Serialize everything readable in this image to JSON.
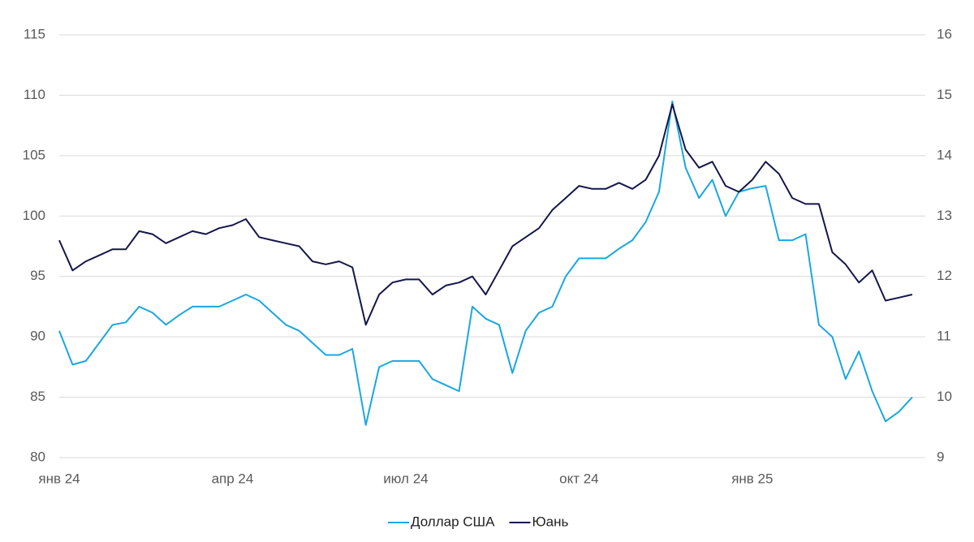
{
  "chart_data": {
    "type": "line",
    "categories": [
      "янв 24",
      null,
      null,
      null,
      null,
      null,
      null,
      null,
      null,
      null,
      null,
      null,
      null,
      "апр 24",
      null,
      null,
      null,
      null,
      null,
      null,
      null,
      null,
      null,
      null,
      null,
      null,
      "июл 24",
      null,
      null,
      null,
      null,
      null,
      null,
      null,
      null,
      null,
      null,
      null,
      null,
      "окт 24",
      null,
      null,
      null,
      null,
      null,
      null,
      null,
      null,
      null,
      null,
      null,
      null,
      "янв 25",
      null,
      null,
      null,
      null,
      null,
      null,
      null,
      null,
      null,
      null,
      null,
      null
    ],
    "series": [
      {
        "name": "Доллар США",
        "color": "#1aa7e0",
        "values": [
          90.5,
          87.7,
          88,
          89.5,
          91,
          91.2,
          92.5,
          92,
          91,
          91.8,
          92.5,
          92.5,
          92.5,
          93,
          93.5,
          93,
          92,
          91,
          90.5,
          89.5,
          88.5,
          88.5,
          89,
          82.7,
          87.5,
          88,
          88,
          88,
          86.5,
          86,
          85.5,
          92.5,
          91.5,
          91,
          87,
          90.5,
          92,
          92.5,
          95,
          96.5,
          96.5,
          96.5,
          97.3,
          98,
          99.5,
          102,
          109.5,
          104,
          101.5,
          103,
          100,
          102,
          102.3,
          102.5,
          98,
          98,
          98.5,
          91,
          90,
          86.5,
          88.8,
          85.5,
          83,
          83.8,
          85
        ]
      },
      {
        "name": "Юань",
        "color": "#14164a",
        "axis": "y2",
        "values": [
          12.6,
          12.1,
          12.25,
          12.35,
          12.45,
          12.45,
          12.75,
          12.7,
          12.55,
          12.65,
          12.75,
          12.7,
          12.8,
          12.85,
          12.95,
          12.65,
          12.6,
          12.55,
          12.5,
          12.25,
          12.2,
          12.25,
          12.15,
          11.2,
          11.7,
          11.9,
          11.95,
          11.95,
          11.7,
          11.85,
          11.9,
          12.0,
          11.7,
          12.1,
          12.5,
          12.65,
          12.8,
          13.1,
          13.3,
          13.5,
          13.45,
          13.45,
          13.55,
          13.45,
          13.6,
          14.0,
          14.85,
          14.1,
          13.8,
          13.9,
          13.5,
          13.4,
          13.6,
          13.9,
          13.7,
          13.3,
          13.2,
          13.2,
          12.4,
          12.2,
          11.9,
          12.1,
          11.6,
          11.65,
          11.7
        ]
      }
    ],
    "ylim": [
      80,
      115
    ],
    "yticks": [
      80,
      85,
      90,
      95,
      100,
      105,
      110,
      115
    ],
    "y2lim": [
      9,
      16
    ],
    "y2ticks": [
      9,
      10,
      11,
      12,
      13,
      14,
      15,
      16
    ],
    "grid": true,
    "legend": "bottom"
  }
}
